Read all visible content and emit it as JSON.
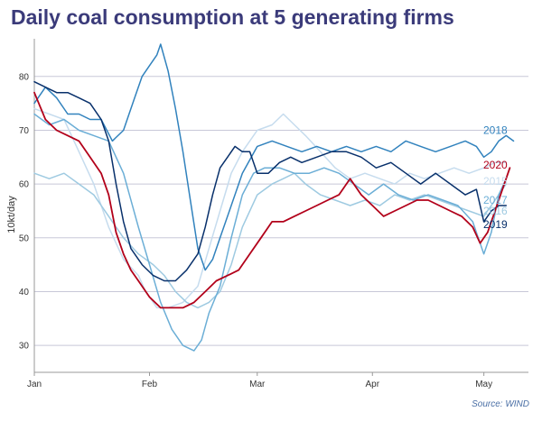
{
  "chart_data": {
    "type": "line",
    "title": "Daily coal consumption at 5 generating firms",
    "ylabel": "10kt/day",
    "xlabel": "",
    "ylim": [
      25,
      87
    ],
    "xlim": [
      0,
      133
    ],
    "yticks": [
      30,
      40,
      50,
      60,
      70,
      80
    ],
    "xticks": [
      {
        "label": "Jan",
        "x": 0
      },
      {
        "label": "Feb",
        "x": 31
      },
      {
        "label": "Mar",
        "x": 60
      },
      {
        "label": "Apr",
        "x": 91
      },
      {
        "label": "May",
        "x": 121
      }
    ],
    "grid": "horizontal",
    "legend": "inline-right",
    "source": "Source: WIND",
    "colors": {
      "grid": "#c8c8d8",
      "title": "#3b3b7a",
      "source": "#4a6fa5"
    },
    "series": [
      {
        "name": "2015",
        "color": "#c6dcee",
        "points": [
          [
            0,
            74
          ],
          [
            4,
            73
          ],
          [
            8,
            72
          ],
          [
            12,
            66
          ],
          [
            16,
            60
          ],
          [
            20,
            52
          ],
          [
            24,
            46
          ],
          [
            28,
            43
          ],
          [
            30,
            40
          ],
          [
            33,
            37
          ],
          [
            36,
            37
          ],
          [
            40,
            38
          ],
          [
            44,
            41
          ],
          [
            47,
            48
          ],
          [
            50,
            55
          ],
          [
            53,
            62
          ],
          [
            56,
            66
          ],
          [
            60,
            70
          ],
          [
            64,
            71
          ],
          [
            67,
            73
          ],
          [
            70,
            71
          ],
          [
            73,
            69
          ],
          [
            77,
            66
          ],
          [
            81,
            63
          ],
          [
            85,
            61
          ],
          [
            89,
            62
          ],
          [
            93,
            61
          ],
          [
            97,
            60
          ],
          [
            101,
            62
          ],
          [
            105,
            61
          ],
          [
            109,
            62
          ],
          [
            113,
            63
          ],
          [
            117,
            62
          ],
          [
            121,
            63
          ],
          [
            124,
            64
          ],
          [
            127,
            64
          ]
        ]
      },
      {
        "name": "2016",
        "color": "#9ecae1",
        "points": [
          [
            0,
            62
          ],
          [
            4,
            61
          ],
          [
            8,
            62
          ],
          [
            12,
            60
          ],
          [
            16,
            58
          ],
          [
            20,
            54
          ],
          [
            24,
            50
          ],
          [
            28,
            47
          ],
          [
            32,
            45
          ],
          [
            35,
            43
          ],
          [
            38,
            40
          ],
          [
            41,
            38
          ],
          [
            44,
            37
          ],
          [
            47,
            38
          ],
          [
            50,
            40
          ],
          [
            53,
            45
          ],
          [
            56,
            52
          ],
          [
            60,
            58
          ],
          [
            64,
            60
          ],
          [
            67,
            61
          ],
          [
            70,
            62
          ],
          [
            73,
            60
          ],
          [
            77,
            58
          ],
          [
            81,
            57
          ],
          [
            85,
            56
          ],
          [
            89,
            57
          ],
          [
            93,
            56
          ],
          [
            97,
            58
          ],
          [
            101,
            57
          ],
          [
            105,
            58
          ],
          [
            109,
            57
          ],
          [
            113,
            56
          ],
          [
            117,
            55
          ],
          [
            121,
            54
          ],
          [
            124,
            57
          ],
          [
            127,
            60
          ]
        ]
      },
      {
        "name": "2017",
        "color": "#6baed6",
        "points": [
          [
            0,
            73
          ],
          [
            4,
            71
          ],
          [
            8,
            72
          ],
          [
            12,
            70
          ],
          [
            16,
            69
          ],
          [
            20,
            68
          ],
          [
            24,
            62
          ],
          [
            28,
            52
          ],
          [
            31,
            45
          ],
          [
            34,
            38
          ],
          [
            37,
            33
          ],
          [
            40,
            30
          ],
          [
            43,
            29
          ],
          [
            45,
            31
          ],
          [
            47,
            36
          ],
          [
            50,
            41
          ],
          [
            53,
            50
          ],
          [
            56,
            58
          ],
          [
            59,
            62
          ],
          [
            62,
            63
          ],
          [
            66,
            63
          ],
          [
            70,
            62
          ],
          [
            74,
            62
          ],
          [
            78,
            63
          ],
          [
            82,
            62
          ],
          [
            86,
            60
          ],
          [
            90,
            58
          ],
          [
            94,
            60
          ],
          [
            98,
            58
          ],
          [
            102,
            57
          ],
          [
            106,
            58
          ],
          [
            110,
            57
          ],
          [
            114,
            56
          ],
          [
            118,
            53
          ],
          [
            121,
            47
          ],
          [
            123,
            51
          ],
          [
            125,
            58
          ],
          [
            127,
            61
          ]
        ]
      },
      {
        "name": "2018",
        "color": "#3182bd",
        "points": [
          [
            0,
            75
          ],
          [
            3,
            78
          ],
          [
            6,
            76
          ],
          [
            9,
            73
          ],
          [
            12,
            73
          ],
          [
            15,
            72
          ],
          [
            18,
            72
          ],
          [
            21,
            68
          ],
          [
            24,
            70
          ],
          [
            27,
            76
          ],
          [
            29,
            80
          ],
          [
            31,
            82
          ],
          [
            33,
            84
          ],
          [
            34,
            86
          ],
          [
            36,
            81
          ],
          [
            38,
            74
          ],
          [
            40,
            66
          ],
          [
            42,
            57
          ],
          [
            44,
            48
          ],
          [
            46,
            44
          ],
          [
            48,
            46
          ],
          [
            50,
            50
          ],
          [
            53,
            56
          ],
          [
            56,
            62
          ],
          [
            60,
            67
          ],
          [
            64,
            68
          ],
          [
            68,
            67
          ],
          [
            72,
            66
          ],
          [
            76,
            67
          ],
          [
            80,
            66
          ],
          [
            84,
            67
          ],
          [
            88,
            66
          ],
          [
            92,
            67
          ],
          [
            96,
            66
          ],
          [
            100,
            68
          ],
          [
            104,
            67
          ],
          [
            108,
            66
          ],
          [
            112,
            67
          ],
          [
            116,
            68
          ],
          [
            119,
            67
          ],
          [
            121,
            65
          ],
          [
            123,
            66
          ],
          [
            125,
            68
          ],
          [
            127,
            69
          ],
          [
            129,
            68
          ]
        ]
      },
      {
        "name": "2019",
        "color": "#08306b",
        "points": [
          [
            0,
            79
          ],
          [
            3,
            78
          ],
          [
            6,
            77
          ],
          [
            9,
            77
          ],
          [
            12,
            76
          ],
          [
            15,
            75
          ],
          [
            18,
            72
          ],
          [
            20,
            68
          ],
          [
            22,
            60
          ],
          [
            24,
            53
          ],
          [
            26,
            48
          ],
          [
            29,
            45
          ],
          [
            32,
            43
          ],
          [
            35,
            42
          ],
          [
            38,
            42
          ],
          [
            41,
            44
          ],
          [
            44,
            47
          ],
          [
            46,
            52
          ],
          [
            48,
            58
          ],
          [
            50,
            63
          ],
          [
            52,
            65
          ],
          [
            54,
            67
          ],
          [
            56,
            66
          ],
          [
            58,
            66
          ],
          [
            60,
            62
          ],
          [
            63,
            62
          ],
          [
            66,
            64
          ],
          [
            69,
            65
          ],
          [
            72,
            64
          ],
          [
            76,
            65
          ],
          [
            80,
            66
          ],
          [
            84,
            66
          ],
          [
            88,
            65
          ],
          [
            92,
            63
          ],
          [
            96,
            64
          ],
          [
            100,
            62
          ],
          [
            104,
            60
          ],
          [
            108,
            62
          ],
          [
            112,
            60
          ],
          [
            116,
            58
          ],
          [
            119,
            59
          ],
          [
            121,
            53
          ],
          [
            123,
            55
          ],
          [
            125,
            56
          ],
          [
            127,
            56
          ]
        ]
      },
      {
        "name": "2020",
        "color": "#b2001a",
        "points": [
          [
            0,
            77
          ],
          [
            3,
            72
          ],
          [
            6,
            70
          ],
          [
            9,
            69
          ],
          [
            12,
            68
          ],
          [
            15,
            65
          ],
          [
            18,
            62
          ],
          [
            20,
            58
          ],
          [
            22,
            51
          ],
          [
            24,
            47
          ],
          [
            26,
            44
          ],
          [
            28,
            42
          ],
          [
            31,
            39
          ],
          [
            34,
            37
          ],
          [
            37,
            37
          ],
          [
            40,
            37
          ],
          [
            43,
            38
          ],
          [
            46,
            40
          ],
          [
            49,
            42
          ],
          [
            52,
            43
          ],
          [
            55,
            44
          ],
          [
            58,
            47
          ],
          [
            61,
            50
          ],
          [
            64,
            53
          ],
          [
            67,
            53
          ],
          [
            70,
            54
          ],
          [
            73,
            55
          ],
          [
            76,
            56
          ],
          [
            79,
            57
          ],
          [
            82,
            58
          ],
          [
            85,
            61
          ],
          [
            88,
            58
          ],
          [
            91,
            56
          ],
          [
            94,
            54
          ],
          [
            97,
            55
          ],
          [
            100,
            56
          ],
          [
            103,
            57
          ],
          [
            106,
            57
          ],
          [
            109,
            56
          ],
          [
            112,
            55
          ],
          [
            115,
            54
          ],
          [
            118,
            52
          ],
          [
            120,
            49
          ],
          [
            122,
            51
          ],
          [
            124,
            55
          ],
          [
            126,
            59
          ],
          [
            128,
            63
          ]
        ]
      }
    ]
  }
}
